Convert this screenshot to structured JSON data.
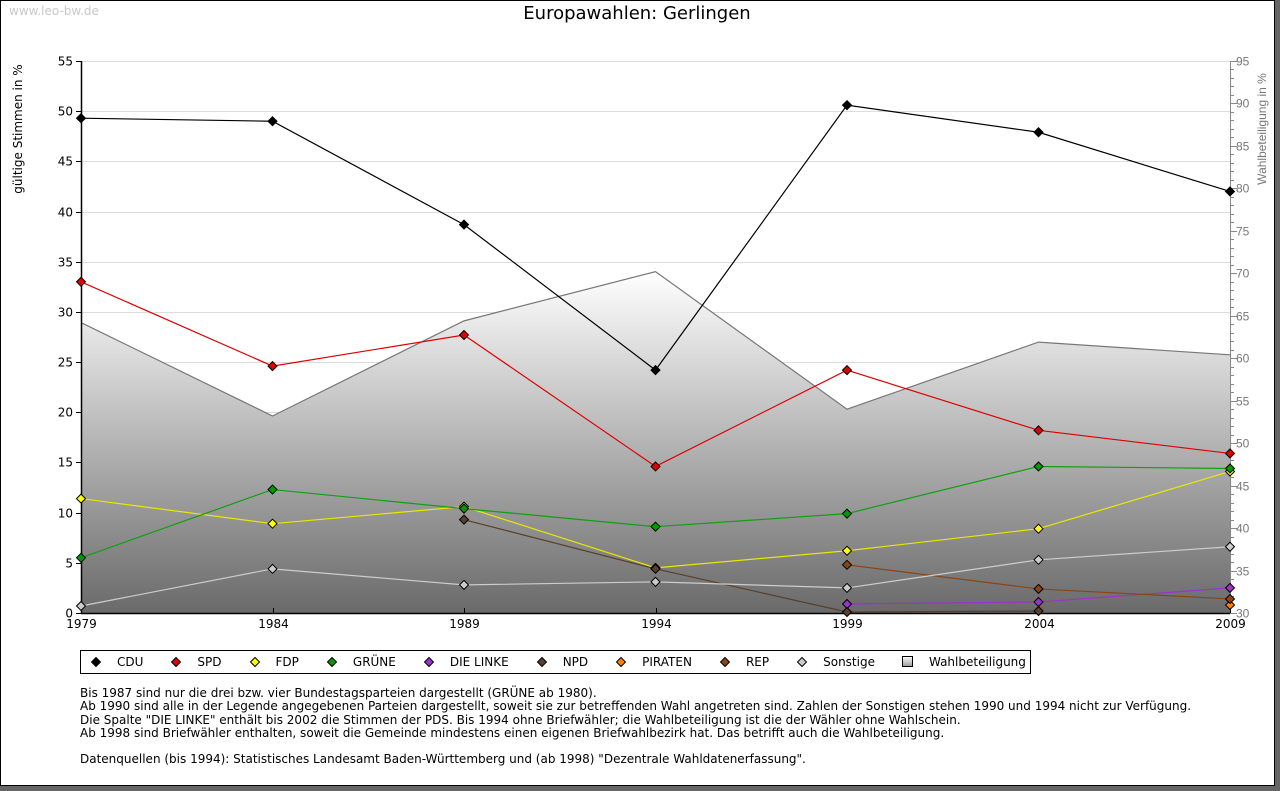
{
  "page": {
    "watermark": "www.leo-bw.de",
    "title": "Europawahlen: Gerlingen"
  },
  "chart_data": {
    "type": "line",
    "title": "Europawahlen: Gerlingen",
    "xlabel": "",
    "ylabel": "gültige Stimmen in %",
    "ylabel_right": "Wahlbeteiligung in %",
    "x": [
      1979,
      1984,
      1989,
      1994,
      1999,
      2004,
      2009
    ],
    "x_tick_labels": [
      "1979",
      "1984",
      "1989",
      "1994",
      "1999",
      "2004",
      "2009"
    ],
    "ylim": [
      0,
      55
    ],
    "y_ticks": [
      0,
      5,
      10,
      15,
      20,
      25,
      30,
      35,
      40,
      45,
      50,
      55
    ],
    "ylim_right": [
      30,
      95
    ],
    "y_ticks_right": [
      30,
      35,
      40,
      45,
      50,
      55,
      60,
      65,
      70,
      75,
      80,
      85,
      90,
      95
    ],
    "grid": true,
    "legend_position": "bottom",
    "series": [
      {
        "name": "CDU",
        "color": "#000000",
        "marker": "#000000",
        "axis": "left",
        "values": [
          49.3,
          49.0,
          38.7,
          24.2,
          50.6,
          47.9,
          42.0
        ]
      },
      {
        "name": "SPD",
        "color": "#e00000",
        "marker": "#e00000",
        "axis": "left",
        "values": [
          33.0,
          24.6,
          27.7,
          14.6,
          24.2,
          18.2,
          15.9
        ]
      },
      {
        "name": "FDP",
        "color": "#e8e800",
        "marker": "#ffff00",
        "axis": "left",
        "values": [
          11.4,
          8.9,
          10.6,
          4.5,
          6.2,
          8.4,
          14.1
        ]
      },
      {
        "name": "GRÜNE",
        "color": "#10a010",
        "marker": "#009900",
        "axis": "left",
        "values": [
          5.5,
          12.3,
          10.4,
          8.6,
          9.9,
          14.6,
          14.4
        ]
      },
      {
        "name": "DIE LINKE",
        "color": "#9933cc",
        "marker": "#9933cc",
        "axis": "left",
        "values": [
          null,
          null,
          null,
          null,
          0.9,
          1.1,
          2.5
        ]
      },
      {
        "name": "NPD",
        "color": "#5a3f2a",
        "marker": "#5a3f2a",
        "axis": "left",
        "values": [
          null,
          null,
          9.3,
          4.4,
          0.1,
          0.2,
          null
        ]
      },
      {
        "name": "PIRATEN",
        "color": "#ff8000",
        "marker": "#ff8000",
        "axis": "left",
        "values": [
          null,
          null,
          null,
          null,
          null,
          null,
          0.8
        ]
      },
      {
        "name": "REP",
        "color": "#8b4513",
        "marker": "#8b4513",
        "axis": "left",
        "values": [
          null,
          null,
          null,
          null,
          4.8,
          2.4,
          1.4
        ]
      },
      {
        "name": "Sonstige",
        "color": "#cccccc",
        "marker": "#cccccc",
        "axis": "left",
        "values": [
          0.7,
          4.4,
          2.8,
          3.1,
          2.5,
          5.3,
          6.6
        ]
      },
      {
        "name": "Wahlbeteiligung",
        "type": "area",
        "color": "#777777",
        "axis": "right",
        "values": [
          64.2,
          53.2,
          64.4,
          70.2,
          54.0,
          61.9,
          60.4
        ]
      }
    ]
  },
  "legend": [
    {
      "label": "CDU",
      "shape": "diamond",
      "color": "#000000"
    },
    {
      "label": "SPD",
      "shape": "diamond",
      "color": "#e00000"
    },
    {
      "label": "FDP",
      "shape": "diamond",
      "color": "#ffff00"
    },
    {
      "label": "GRÜNE",
      "shape": "diamond",
      "color": "#009900"
    },
    {
      "label": "DIE LINKE",
      "shape": "diamond",
      "color": "#9933cc"
    },
    {
      "label": "NPD",
      "shape": "diamond",
      "color": "#5a3f2a"
    },
    {
      "label": "PIRATEN",
      "shape": "diamond",
      "color": "#ff8000"
    },
    {
      "label": "REP",
      "shape": "diamond",
      "color": "#8b4513"
    },
    {
      "label": "Sonstige",
      "shape": "diamond",
      "color": "#cccccc"
    },
    {
      "label": "Wahlbeteiligung",
      "shape": "square",
      "color": "#cccccc"
    }
  ],
  "notes": [
    "Bis 1987 sind nur die drei bzw. vier Bundestagsparteien dargestellt (GRÜNE ab 1980).",
    "Ab 1990 sind alle in der Legende angegebenen Parteien dargestellt, soweit sie zur betreffenden Wahl angetreten sind. Zahlen der Sonstigen stehen 1990 und 1994 nicht zur Verfügung.",
    "Die Spalte \"DIE LINKE\" enthält bis 2002 die Stimmen der PDS. Bis 1994 ohne Briefwähler; die Wahlbeteiligung ist die der Wähler ohne Wahlschein.",
    "Ab 1998 sind Briefwähler enthalten, soweit die Gemeinde mindestens einen eigenen Briefwahlbezirk hat. Das betrifft auch die Wahlbeteiligung.",
    "",
    "Datenquellen (bis 1994): Statistisches Landesamt Baden-Württemberg und (ab 1998) \"Dezentrale Wahldatenerfassung\"."
  ]
}
